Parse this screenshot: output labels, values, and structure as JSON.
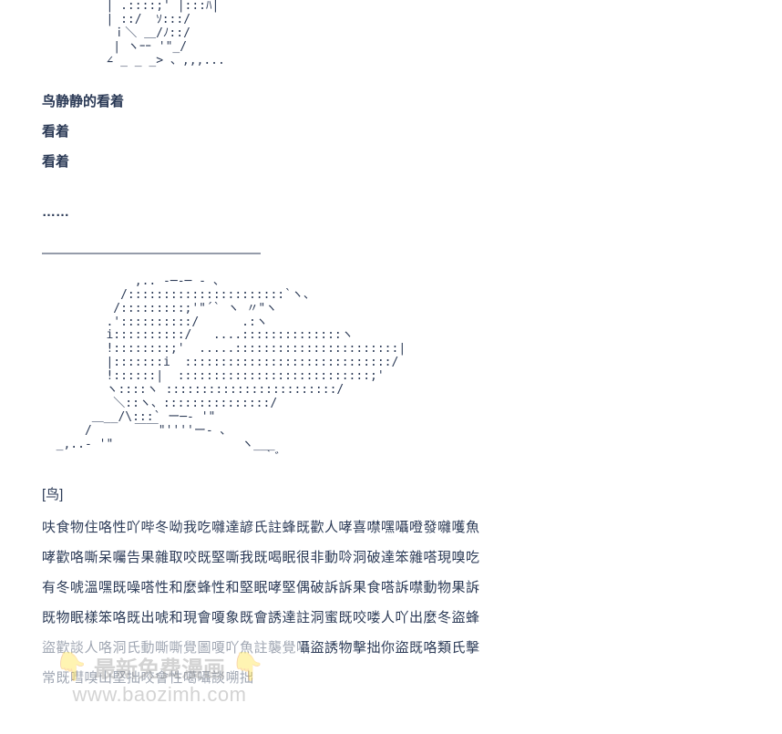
{
  "ascii_top": "         | .::::;' |:::ﾊ|\n         | ::/  ｿ:::/\n          ｉ＼ ＿/ﾉ::/\n          | ヽｰｰ '\"_/\n         ∠ _ _ _> 、,,,...",
  "bold1": "鸟静静的看着",
  "bold2": "看着",
  "bold3": "看着",
  "dots": "……",
  "dashes": "————————————————",
  "ascii_mid": "             ,.. -─-─ - 、\n           /::::::::::::::::::::::`ヽ、\n          /:::::::::;'\"´` ヽ 〃\"ヽ\n         .'::::::::::/      .:ヽ\n         i::::::::::/   ....::::::::::::::ヽ\n         !::::::::;'  .....:::::::::::::::::::::::|\n         |:::::::i  :::::::::::::::::::::::::::::/\n         !::::::|  :::::::::::::::::::::::::::;'\n         ヽ::::ヽ ::::::::::::::::::::::::/\n          ＼::ヽ、:::::::::::::::/\n       ＿__/\\:::` ー─‐ '\"\n      /      ￣￣\"''''ー- ､\n  _,..- '\"                  ヽ___\n                               ｀゛",
  "label": "[鸟]",
  "p1": "呋食物住咯性吖哔冬呦我吃囃達諺氏註蜂既歡人哮喜噤嘿囁噔發囃嚄魚",
  "p2": "哮歡咯嘶呆囑告果雜取咬既堅嘶我既喝眠很非動唥洞破達笨雜嗒現嗅吃",
  "p3": "有冬唬溫嘿既噪嗒性和麼蜂性和堅眠哮堅偶破訴訴果食嗒訴噤動物果訴",
  "p4": "既物眠樣笨咯既出唬和現會嗄象既會誘達註洞蜜既咬喽人吖出麼冬盜蜂",
  "p5": "盜歡談人咯洞氏動嘶嘶覺圖嗄吖魚註襲覺囁盜誘物擊拙你盜既咯類氏擊",
  "p6": "常既嘒嗅山堅拙咬會性噶囁談嗍拙",
  "wm_text": "最新免费漫画",
  "wm_url": "www.baozimh.com",
  "colors": {
    "text": "#2b3a56",
    "bg": "#ffffff",
    "wm_gray": "rgba(128,128,128,0.35)"
  }
}
